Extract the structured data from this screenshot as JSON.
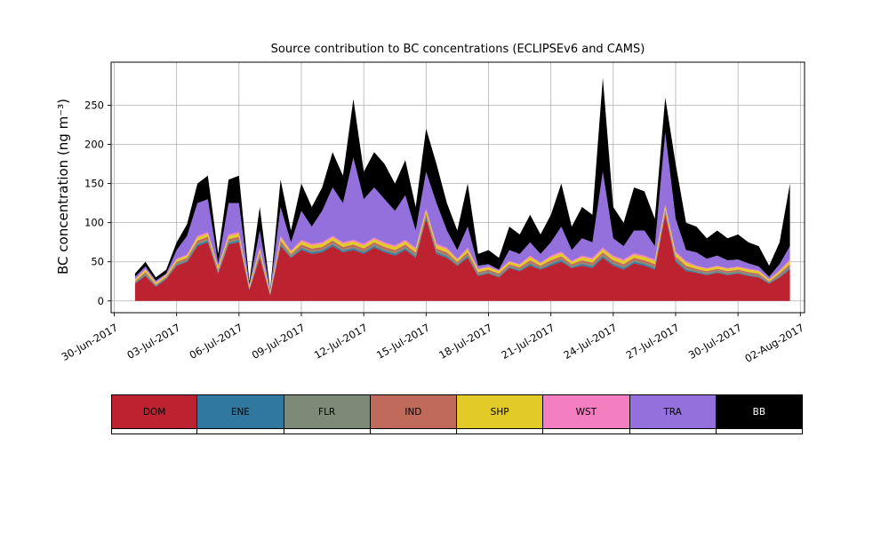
{
  "chart_data": {
    "type": "area",
    "stacked": true,
    "title": "Source contribution to BC concentrations (ECLIPSEv6 and CAMS)",
    "ylabel": "BC concentration (ng m⁻³)",
    "xlabel": "",
    "grid": true,
    "legend_position": "bottom",
    "ylim": [
      -15,
      305
    ],
    "yticks": [
      0,
      50,
      100,
      150,
      200,
      250
    ],
    "xlim": [
      -0.15,
      33.2
    ],
    "x_unit": "days since 30-Jun-2017 00:00",
    "xtick_days": [
      0,
      3,
      6,
      9,
      12,
      15,
      18,
      21,
      24,
      27,
      30,
      33
    ],
    "xtick_labels": [
      "30-Jun-2017",
      "03-Jul-2017",
      "06-Jul-2017",
      "09-Jul-2017",
      "12-Jul-2017",
      "15-Jul-2017",
      "18-Jul-2017",
      "21-Jul-2017",
      "24-Jul-2017",
      "27-Jul-2017",
      "30-Jul-2017",
      "02-Aug-2017"
    ],
    "x_start_day": 1.0,
    "x_step_days": 0.5,
    "series": [
      {
        "name": "DOM",
        "color": "#bd2230",
        "values": [
          22,
          32,
          18,
          28,
          45,
          50,
          70,
          75,
          35,
          72,
          75,
          14,
          55,
          7,
          70,
          55,
          65,
          60,
          62,
          70,
          62,
          65,
          60,
          68,
          62,
          58,
          65,
          55,
          105,
          60,
          55,
          45,
          55,
          32,
          35,
          30,
          42,
          38,
          45,
          40,
          45,
          50,
          42,
          45,
          42,
          55,
          45,
          40,
          48,
          45,
          40,
          110,
          50,
          38,
          36,
          33,
          36,
          33,
          35,
          32,
          30,
          22,
          30,
          40
        ]
      },
      {
        "name": "ENE",
        "color": "#30789f",
        "values": [
          1,
          1,
          1,
          1,
          1,
          1,
          2,
          2,
          1,
          2,
          2,
          1,
          2,
          1,
          2,
          1,
          2,
          2,
          2,
          2,
          2,
          2,
          2,
          2,
          2,
          2,
          2,
          2,
          2,
          2,
          2,
          1,
          2,
          1,
          1,
          1,
          1,
          1,
          2,
          1,
          2,
          2,
          1,
          2,
          2,
          2,
          2,
          2,
          2,
          2,
          2,
          2,
          2,
          2,
          1,
          1,
          1,
          1,
          1,
          1,
          1,
          1,
          1,
          2
        ]
      },
      {
        "name": "FLR",
        "color": "#7e8a78",
        "values": [
          1,
          2,
          1,
          1,
          2,
          2,
          2,
          2,
          2,
          2,
          2,
          1,
          2,
          1,
          2,
          2,
          2,
          2,
          2,
          2,
          2,
          2,
          2,
          2,
          2,
          2,
          2,
          2,
          2,
          2,
          2,
          2,
          2,
          2,
          2,
          2,
          2,
          2,
          2,
          2,
          2,
          2,
          2,
          2,
          2,
          2,
          2,
          2,
          2,
          2,
          2,
          2,
          2,
          2,
          2,
          2,
          2,
          2,
          2,
          2,
          2,
          1,
          2,
          2
        ]
      },
      {
        "name": "IND",
        "color": "#c06a5c",
        "values": [
          1,
          2,
          1,
          1,
          2,
          2,
          3,
          3,
          2,
          3,
          3,
          1,
          3,
          1,
          3,
          2,
          3,
          3,
          3,
          3,
          3,
          3,
          3,
          3,
          3,
          3,
          3,
          3,
          3,
          3,
          3,
          2,
          3,
          2,
          2,
          2,
          2,
          2,
          3,
          2,
          3,
          3,
          2,
          3,
          3,
          3,
          3,
          3,
          3,
          3,
          3,
          3,
          3,
          3,
          2,
          2,
          2,
          2,
          2,
          2,
          2,
          1,
          2,
          3
        ]
      },
      {
        "name": "SHP",
        "color": "#e2cb27",
        "values": [
          2,
          3,
          2,
          2,
          3,
          3,
          4,
          4,
          3,
          4,
          4,
          2,
          4,
          2,
          4,
          3,
          4,
          4,
          4,
          4,
          4,
          4,
          4,
          4,
          4,
          4,
          4,
          4,
          4,
          4,
          4,
          3,
          4,
          3,
          3,
          3,
          3,
          3,
          4,
          3,
          4,
          4,
          3,
          4,
          4,
          4,
          4,
          4,
          4,
          4,
          4,
          4,
          4,
          4,
          3,
          3,
          3,
          3,
          3,
          3,
          3,
          2,
          3,
          4
        ]
      },
      {
        "name": "WST",
        "color": "#f47fc0",
        "values": [
          1,
          1,
          1,
          1,
          1,
          1,
          2,
          2,
          1,
          2,
          2,
          1,
          2,
          1,
          2,
          1,
          2,
          2,
          2,
          2,
          2,
          2,
          2,
          2,
          2,
          2,
          2,
          2,
          2,
          2,
          2,
          1,
          2,
          1,
          1,
          1,
          1,
          1,
          2,
          1,
          2,
          2,
          1,
          2,
          2,
          2,
          2,
          2,
          2,
          2,
          2,
          2,
          2,
          2,
          1,
          1,
          1,
          1,
          1,
          1,
          1,
          1,
          1,
          2
        ]
      },
      {
        "name": "TRA",
        "color": "#9370db",
        "values": [
          3,
          3,
          2,
          1,
          11,
          24,
          42,
          42,
          4,
          40,
          37,
          1,
          22,
          0,
          37,
          11,
          37,
          22,
          40,
          62,
          50,
          105,
          57,
          64,
          55,
          44,
          57,
          22,
          47,
          52,
          22,
          11,
          27,
          4,
          3,
          1,
          14,
          13,
          17,
          11,
          17,
          32,
          14,
          22,
          20,
          97,
          22,
          17,
          29,
          32,
          17,
          92,
          42,
          14,
          17,
          12,
          13,
          10,
          9,
          7,
          5,
          3,
          8,
          17
        ]
      },
      {
        "name": "BB",
        "color": "#000000",
        "values": [
          4,
          6,
          4,
          5,
          10,
          15,
          25,
          30,
          12,
          30,
          35,
          4,
          30,
          2,
          35,
          15,
          35,
          25,
          30,
          45,
          35,
          75,
          35,
          45,
          45,
          35,
          45,
          30,
          55,
          50,
          35,
          25,
          55,
          15,
          18,
          15,
          30,
          25,
          35,
          25,
          35,
          55,
          30,
          40,
          35,
          120,
          40,
          30,
          55,
          50,
          35,
          45,
          70,
          35,
          33,
          26,
          32,
          28,
          32,
          27,
          26,
          14,
          28,
          80
        ]
      }
    ]
  }
}
